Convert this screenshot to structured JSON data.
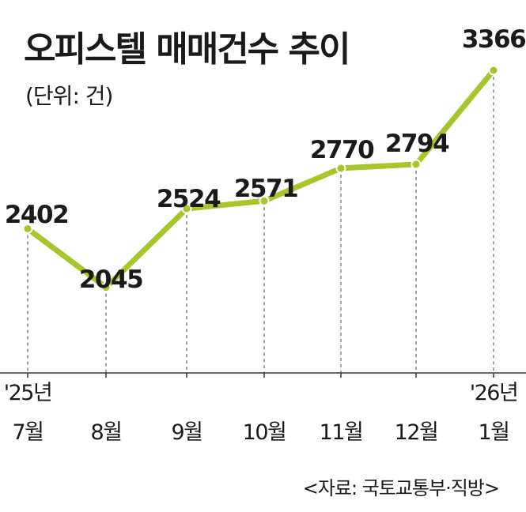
{
  "title": "오피스텔 매매건수 추이",
  "unit_label": "(단위: 건)",
  "source": "<자료: 국토교통부·직방>",
  "colors": {
    "line": "#a8c52b",
    "text": "#1a1a1a",
    "axis": "#333333",
    "guide": "#444444"
  },
  "chart_data": {
    "type": "line",
    "categories": [
      {
        "year": "'25년",
        "month": "7월"
      },
      {
        "year": "",
        "month": "8월"
      },
      {
        "year": "",
        "month": "9월"
      },
      {
        "year": "",
        "month": "10월"
      },
      {
        "year": "",
        "month": "11월"
      },
      {
        "year": "",
        "month": "12월"
      },
      {
        "year": "'26년",
        "month": "1월"
      }
    ],
    "values": [
      2402,
      2045,
      2524,
      2571,
      2770,
      2794,
      3366
    ],
    "data_labels": [
      "2402",
      "2045",
      "2524",
      "2571",
      "2770",
      "2794",
      "3366"
    ],
    "ylim": [
      1500,
      3400
    ],
    "grid": false
  }
}
